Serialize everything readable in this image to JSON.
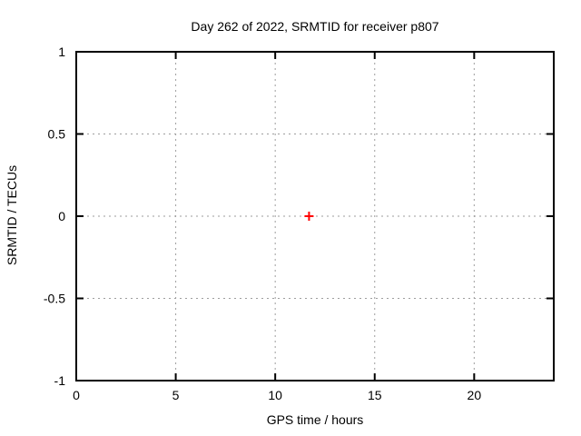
{
  "chart_data": {
    "type": "scatter",
    "title": "Day 262 of 2022, SRMTID for receiver p807",
    "xlabel": "GPS time / hours",
    "ylabel": "SRMTID / TECUs",
    "xlim": [
      0,
      24
    ],
    "ylim": [
      -1,
      1
    ],
    "xticks": [
      0,
      5,
      10,
      15,
      20
    ],
    "yticks": [
      -1,
      -0.5,
      0,
      0.5,
      1
    ],
    "grid": true,
    "legend": "none",
    "series": [
      {
        "name": "SRMTID",
        "marker": "plus",
        "color": "#ff0000",
        "points": [
          {
            "x": 11.7,
            "y": 0.0
          }
        ]
      }
    ],
    "colors": {
      "background": "#ffffff",
      "axis": "#000000",
      "grid": "#9e9e9e",
      "text": "#000000",
      "marker": "#ff0000"
    }
  }
}
